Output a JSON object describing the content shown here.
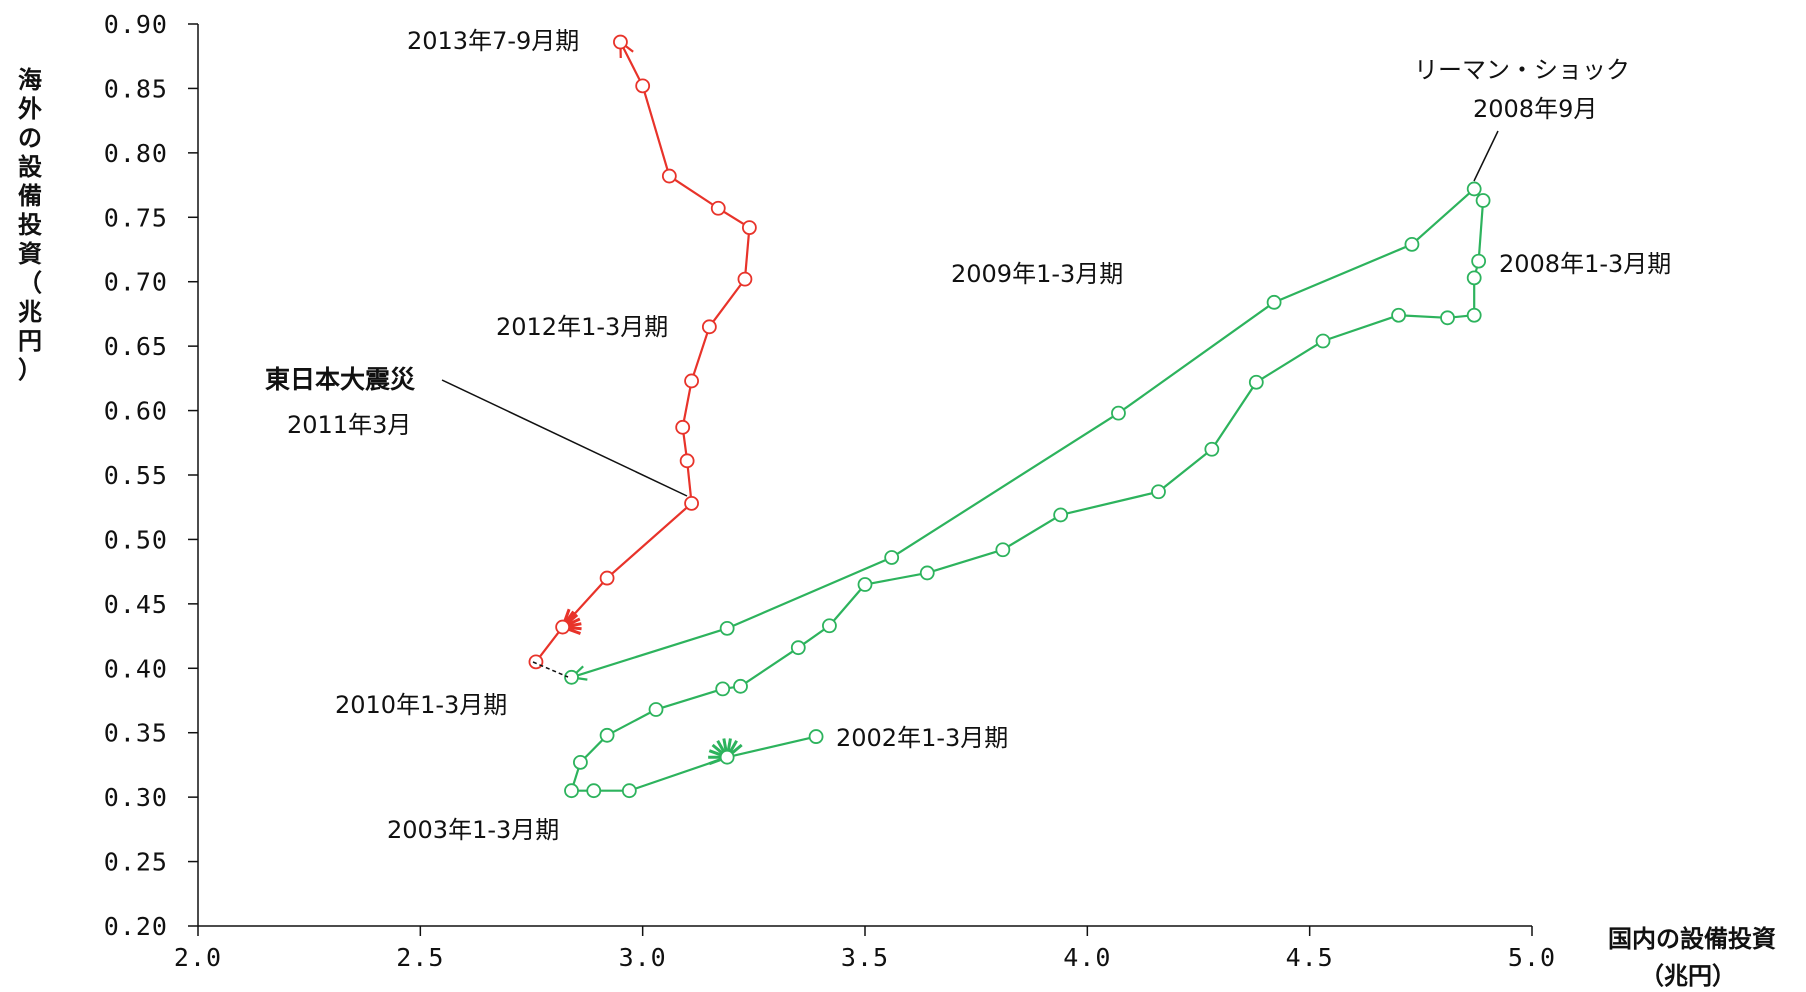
{
  "chart_data": {
    "type": "line",
    "xlabel_lines": [
      "国内の設備投資",
      "（兆円）"
    ],
    "ylabel": "海外の設備投資（兆円）",
    "xlim": [
      2.0,
      5.0
    ],
    "ylim": [
      0.2,
      0.9
    ],
    "x_ticks": [
      "2.0",
      "2.5",
      "3.0",
      "3.5",
      "4.0",
      "4.5",
      "5.0"
    ],
    "y_ticks": [
      "0.20",
      "0.25",
      "0.30",
      "0.35",
      "0.40",
      "0.45",
      "0.50",
      "0.55",
      "0.60",
      "0.65",
      "0.70",
      "0.75",
      "0.80",
      "0.85",
      "0.90"
    ],
    "grid": false,
    "series": [
      {
        "color": "#2db35d",
        "points": [
          [
            3.39,
            0.347
          ],
          [
            3.19,
            0.331
          ],
          [
            2.97,
            0.305
          ],
          [
            2.89,
            0.305
          ],
          [
            2.84,
            0.305
          ],
          [
            2.86,
            0.327
          ],
          [
            2.92,
            0.348
          ],
          [
            3.03,
            0.368
          ],
          [
            3.18,
            0.384
          ],
          [
            3.22,
            0.386
          ],
          [
            3.35,
            0.416
          ],
          [
            3.42,
            0.433
          ],
          [
            3.5,
            0.465
          ],
          [
            3.64,
            0.474
          ],
          [
            3.81,
            0.492
          ],
          [
            3.94,
            0.519
          ],
          [
            4.16,
            0.537
          ],
          [
            4.28,
            0.57
          ],
          [
            4.38,
            0.622
          ],
          [
            4.53,
            0.654
          ],
          [
            4.7,
            0.674
          ],
          [
            4.81,
            0.672
          ],
          [
            4.87,
            0.674
          ],
          [
            4.87,
            0.703
          ],
          [
            4.88,
            0.716
          ],
          [
            4.89,
            0.763
          ],
          [
            4.87,
            0.772
          ],
          [
            4.73,
            0.729
          ],
          [
            4.42,
            0.684
          ],
          [
            4.07,
            0.598
          ],
          [
            3.56,
            0.486
          ],
          [
            3.19,
            0.431
          ],
          [
            2.84,
            0.393
          ]
        ]
      },
      {
        "color": "#e8332a",
        "points": [
          [
            2.76,
            0.405
          ],
          [
            2.82,
            0.432
          ],
          [
            2.92,
            0.47
          ],
          [
            3.11,
            0.528
          ],
          [
            3.1,
            0.561
          ],
          [
            3.09,
            0.587
          ],
          [
            3.11,
            0.623
          ],
          [
            3.15,
            0.665
          ],
          [
            3.23,
            0.702
          ],
          [
            3.24,
            0.742
          ],
          [
            3.17,
            0.757
          ],
          [
            3.06,
            0.782
          ],
          [
            3.0,
            0.852
          ],
          [
            2.95,
            0.886
          ]
        ]
      }
    ],
    "annotations": {
      "a2013": "2013年7-9月期",
      "lehman": "リーマン・ショック",
      "lehman_date": "2008年9月",
      "a2008": "2008年1-3月期",
      "a2009": "2009年1-3月期",
      "a2012": "2012年1-3月期",
      "quake": "東日本大震災",
      "quake_date": "2011年3月",
      "a2010": "2010年1-3月期",
      "a2002": "2002年1-3月期",
      "a2003": "2003年1-3月期"
    }
  }
}
